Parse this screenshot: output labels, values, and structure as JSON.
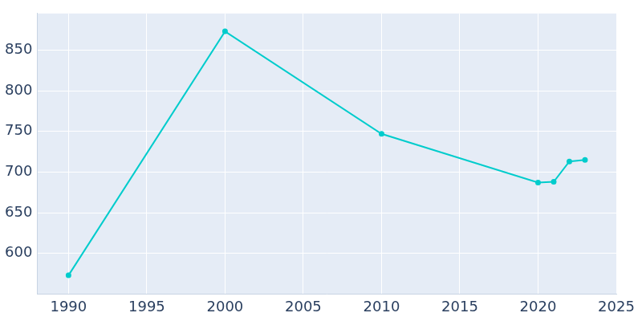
{
  "chart_data": {
    "type": "line",
    "x": [
      1990,
      2000,
      2010,
      2020,
      2021,
      2022,
      2023
    ],
    "values": [
      573,
      873,
      747,
      687,
      688,
      713,
      715
    ],
    "color": "#00cccc",
    "marker": "circle",
    "xlim": [
      1988,
      2025
    ],
    "xticks": [
      1990,
      1995,
      2000,
      2005,
      2010,
      2015,
      2020,
      2025
    ],
    "ylim": [
      550,
      895
    ],
    "yticks": [
      600,
      650,
      700,
      750,
      800,
      850
    ],
    "grid": true
  }
}
